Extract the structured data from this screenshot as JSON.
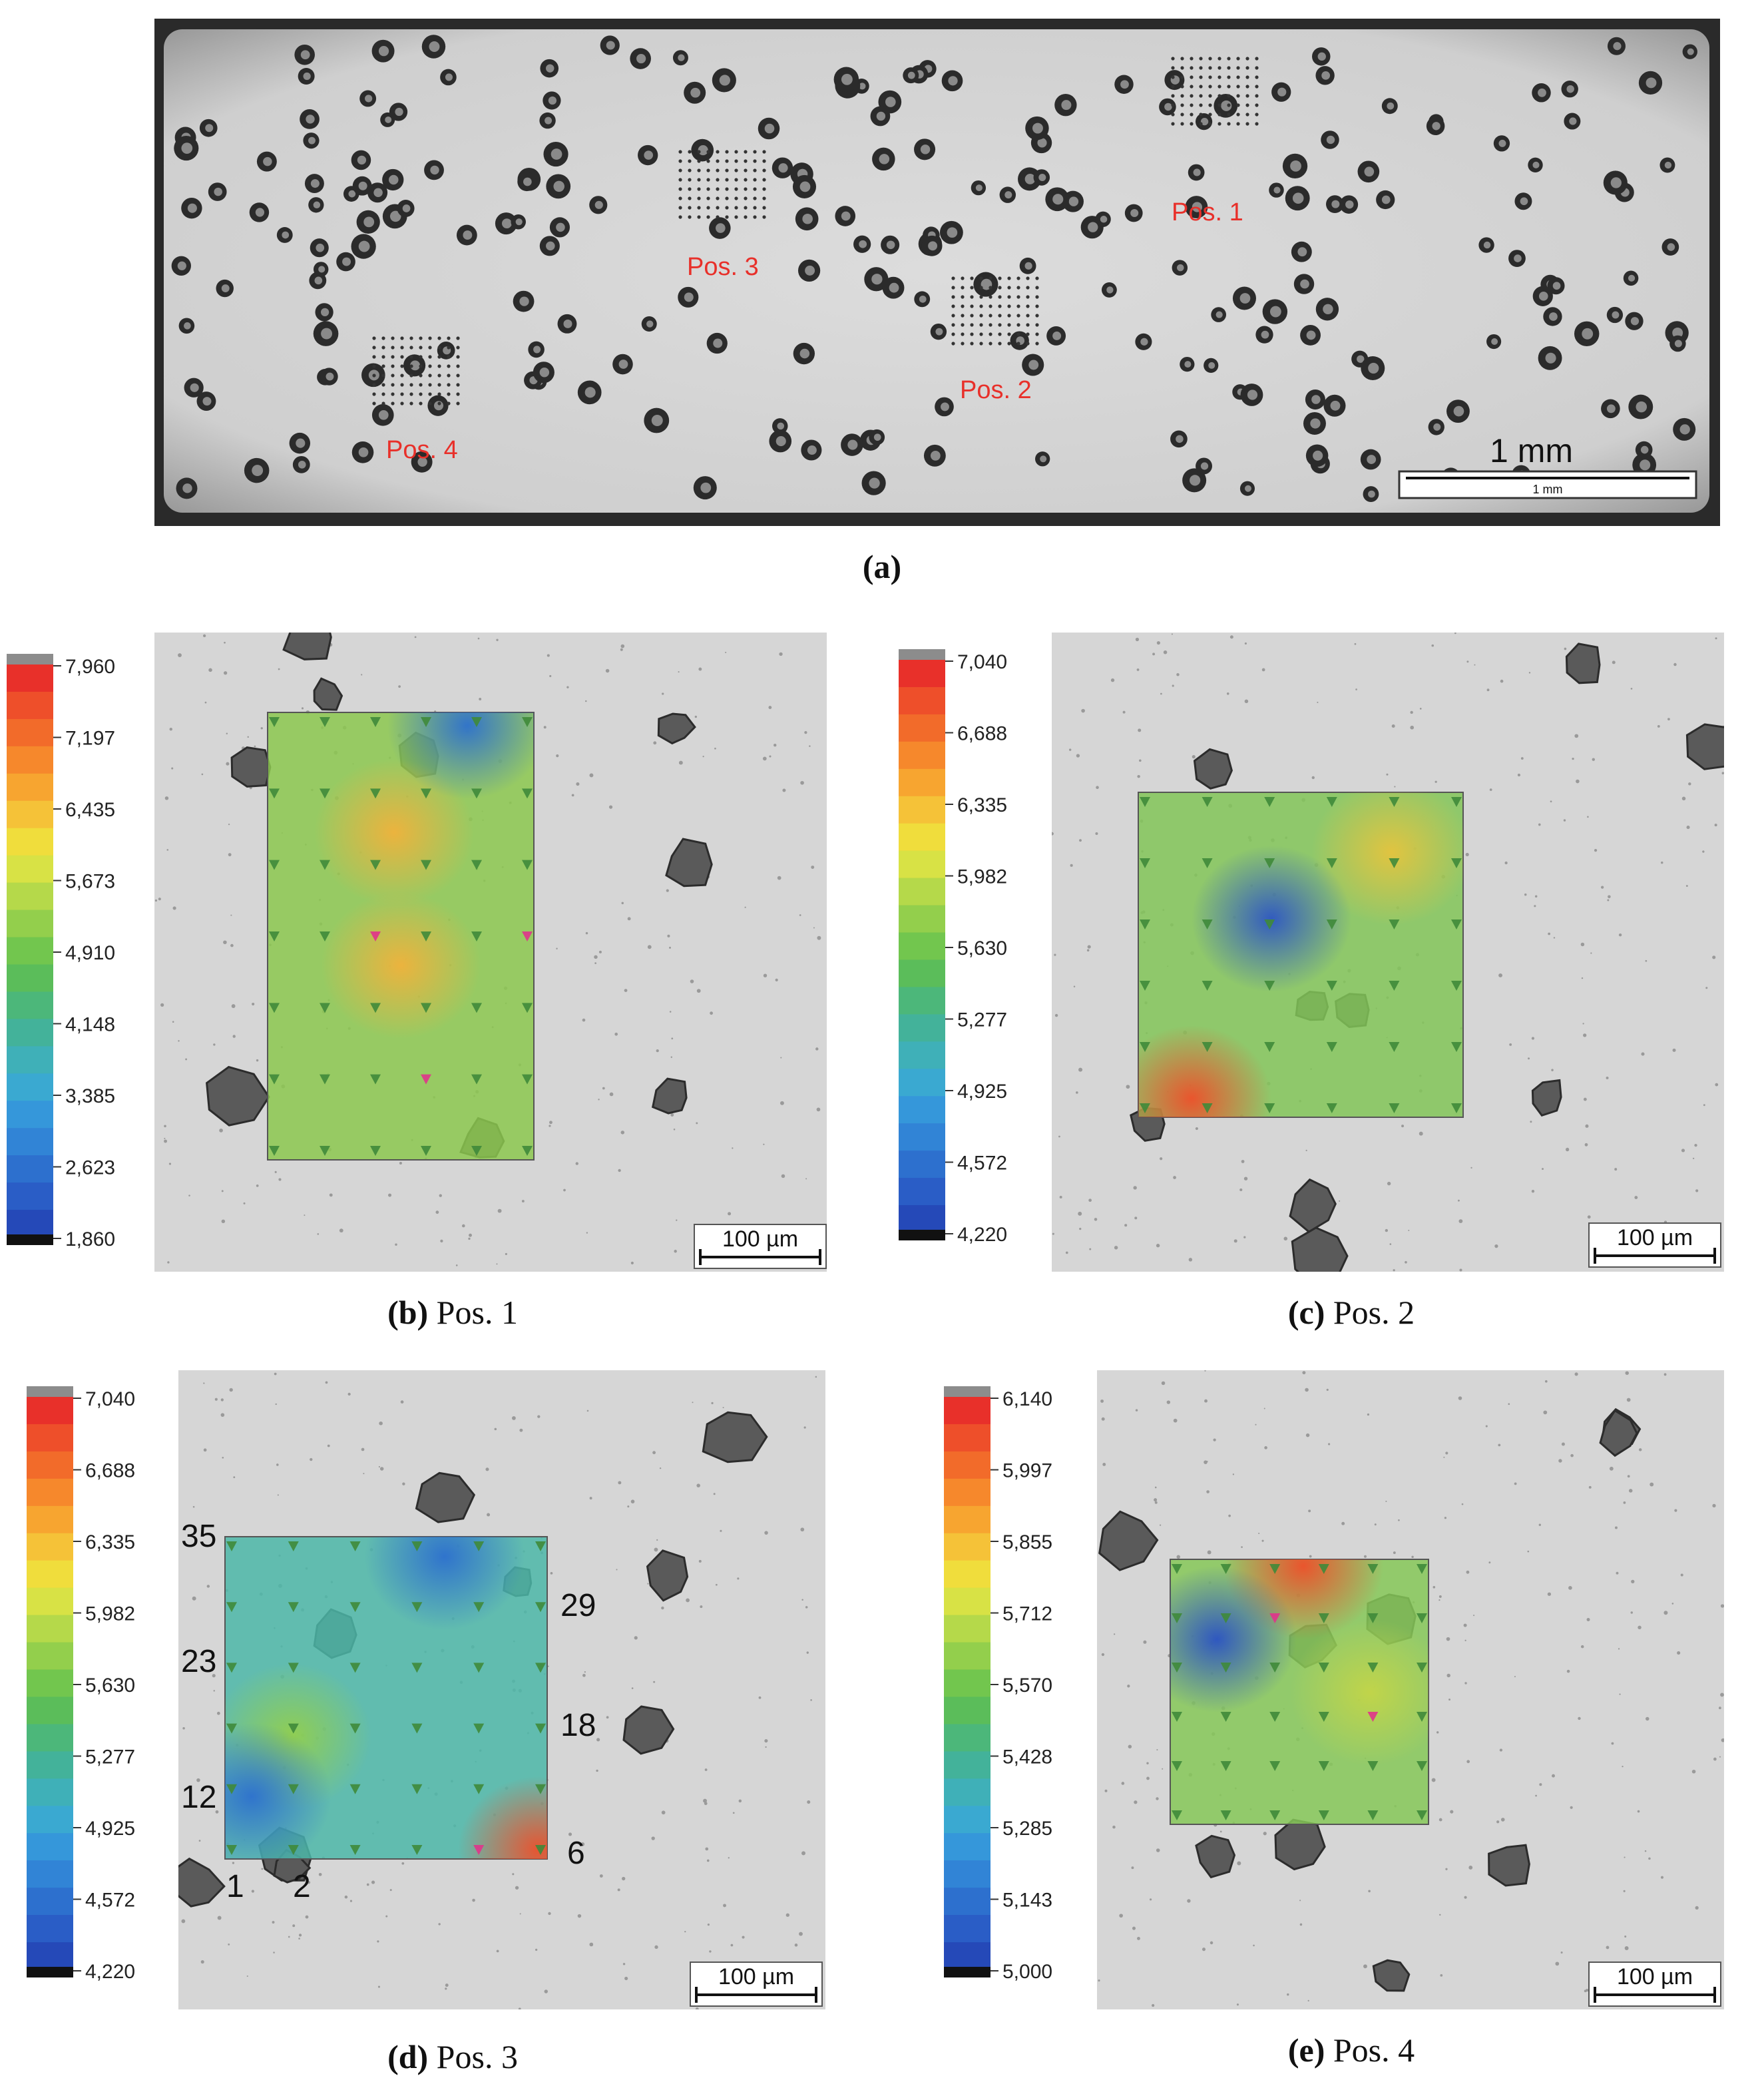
{
  "panel_a": {
    "caption": "(a)",
    "labels": [
      "Pos. 1",
      "Pos. 2",
      "Pos. 3",
      "Pos. 4"
    ],
    "scale_big": "1 mm",
    "scale_small": "1 mm",
    "label_color": "#e8302a"
  },
  "panels": [
    {
      "key": "b",
      "caption_letter": "(b)",
      "caption_text": " Pos. 1",
      "scale": "100 µm",
      "ticks": [
        "7,960",
        "7,197",
        "6,435",
        "5,673",
        "4,910",
        "4,148",
        "3,385",
        "2,623",
        "1,860"
      ]
    },
    {
      "key": "c",
      "caption_letter": "(c)",
      "caption_text": " Pos. 2",
      "scale": "100 µm",
      "ticks": [
        "7,040",
        "6,688",
        "6,335",
        "5,982",
        "5,630",
        "5,277",
        "4,925",
        "4,572",
        "4,220"
      ]
    },
    {
      "key": "d",
      "caption_letter": "(d)",
      "caption_text": " Pos. 3",
      "scale": "100 µm",
      "ticks": [
        "7,040",
        "6,688",
        "6,335",
        "5,982",
        "5,630",
        "5,277",
        "4,925",
        "4,572",
        "4,220"
      ],
      "indent_labels": [
        "35",
        "23",
        "12",
        "1",
        "2",
        "29",
        "18",
        "6"
      ]
    },
    {
      "key": "e",
      "caption_letter": "(e)",
      "caption_text": " Pos. 4",
      "scale": "100 µm",
      "ticks": [
        "6,140",
        "5,997",
        "5,855",
        "5,712",
        "5,570",
        "5,428",
        "5,285",
        "5,143",
        "5,000"
      ]
    }
  ]
}
